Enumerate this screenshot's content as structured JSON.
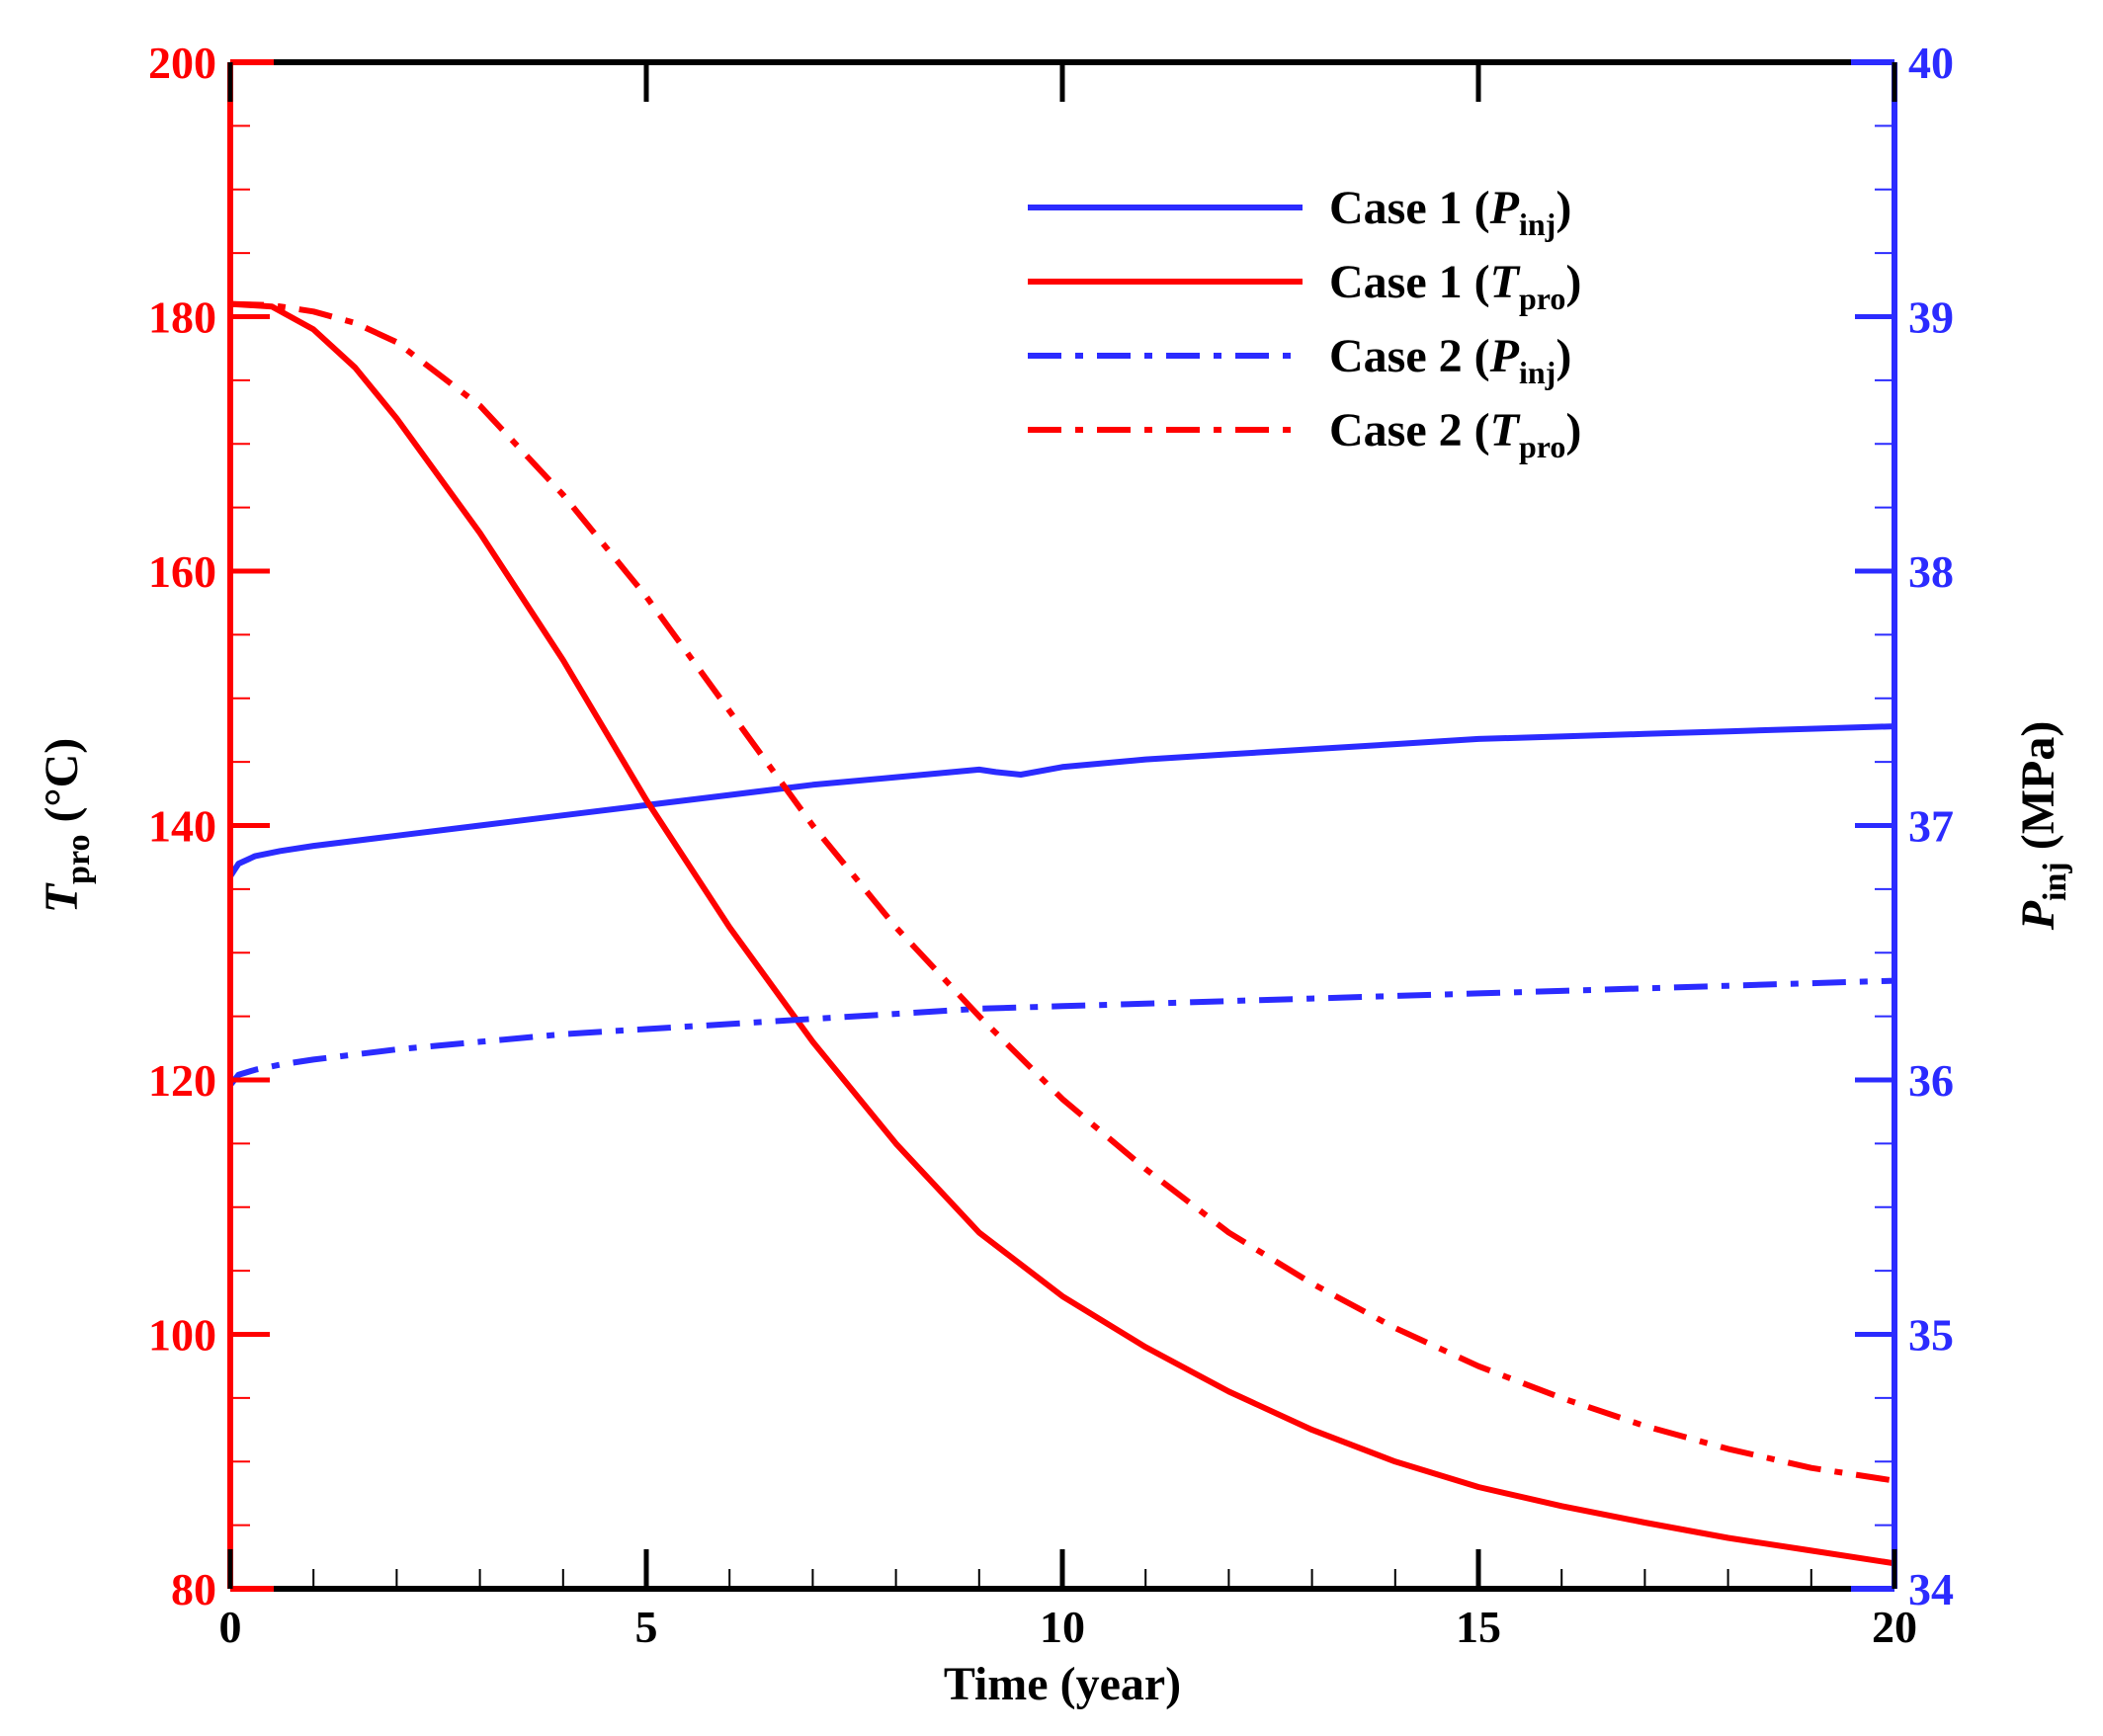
{
  "chart_data": {
    "type": "line",
    "xlabel": "Time (year)",
    "ylabel_left": {
      "symbol": "T",
      "subscript": "pro",
      "unit": " (°C)"
    },
    "ylabel_right": {
      "symbol": "P",
      "subscript": "inj",
      "unit": " (MPa)"
    },
    "xlim": [
      0,
      20
    ],
    "ylim_left": [
      80,
      200
    ],
    "ylim_right": [
      34,
      40
    ],
    "x_ticks": [
      "0",
      "5",
      "10",
      "15",
      "20"
    ],
    "y_ticks_left": [
      "80",
      "100",
      "120",
      "140",
      "160",
      "180",
      "200"
    ],
    "y_ticks_right": [
      "34",
      "35",
      "36",
      "37",
      "38",
      "39",
      "40"
    ],
    "colors": {
      "left_axis": "#ff0000",
      "right_axis": "#2b2bff",
      "frame": "#000000"
    },
    "series": [
      {
        "name": "Case 1 (Pinj)",
        "label_main": "Case 1 (",
        "label_sym": "P",
        "label_sub": "inj",
        "label_end": ")",
        "axis": "right",
        "color": "#2b2bff",
        "style": "solid",
        "x": [
          0,
          0.1,
          0.3,
          0.6,
          1,
          2,
          3,
          4,
          5,
          6,
          7,
          8,
          9,
          9.2,
          9.5,
          10,
          11,
          12,
          13,
          14,
          15,
          16,
          17,
          18,
          19,
          20
        ],
        "y": [
          36.8,
          36.85,
          36.88,
          36.9,
          36.92,
          36.96,
          37.0,
          37.04,
          37.08,
          37.12,
          37.16,
          37.19,
          37.22,
          37.21,
          37.2,
          37.23,
          37.26,
          37.28,
          37.3,
          37.32,
          37.34,
          37.35,
          37.36,
          37.37,
          37.38,
          37.39
        ]
      },
      {
        "name": "Case 1 (Tpro)",
        "label_main": "Case 1 (",
        "label_sym": "T",
        "label_sub": "pro",
        "label_end": ")",
        "axis": "left",
        "color": "#ff0000",
        "style": "solid",
        "x": [
          0,
          0.5,
          1,
          1.5,
          2,
          3,
          4,
          5,
          6,
          7,
          8,
          9,
          10,
          11,
          12,
          13,
          14,
          15,
          16,
          17,
          18,
          19,
          20
        ],
        "y": [
          181,
          180.8,
          179,
          176,
          172,
          163,
          153,
          142,
          132,
          123,
          115,
          108,
          103,
          99,
          95.5,
          92.5,
          90,
          88,
          86.5,
          85.2,
          84,
          83,
          82
        ]
      },
      {
        "name": "Case 2 (Pinj)",
        "label_main": "Case 2 (",
        "label_sym": "P",
        "label_sub": "inj",
        "label_end": ")",
        "axis": "right",
        "color": "#2b2bff",
        "style": "dashdot",
        "x": [
          0,
          0.1,
          0.3,
          0.6,
          1,
          2,
          3,
          4,
          5,
          6,
          7,
          8,
          9,
          10,
          11,
          12,
          13,
          14,
          15,
          16,
          17,
          18,
          19,
          20
        ],
        "y": [
          35.98,
          36.02,
          36.04,
          36.06,
          36.08,
          36.12,
          36.15,
          36.18,
          36.2,
          36.22,
          36.24,
          36.26,
          36.28,
          36.29,
          36.3,
          36.31,
          36.32,
          36.33,
          36.34,
          36.35,
          36.36,
          36.37,
          36.38,
          36.39
        ]
      },
      {
        "name": "Case 2 (Tpro)",
        "label_main": "Case 2 (",
        "label_sym": "T",
        "label_sub": "pro",
        "label_end": ")",
        "axis": "left",
        "color": "#ff0000",
        "style": "dashdot",
        "x": [
          0,
          0.5,
          1,
          1.5,
          2,
          3,
          4,
          5,
          6,
          7,
          8,
          9,
          10,
          11,
          12,
          13,
          14,
          15,
          16,
          17,
          18,
          19,
          20
        ],
        "y": [
          181,
          180.9,
          180.4,
          179.5,
          178,
          173,
          166,
          158,
          149,
          140,
          132,
          125,
          118.5,
          113,
          108,
          104,
          100.5,
          97.5,
          95,
          92.8,
          91,
          89.5,
          88.5
        ]
      }
    ]
  }
}
